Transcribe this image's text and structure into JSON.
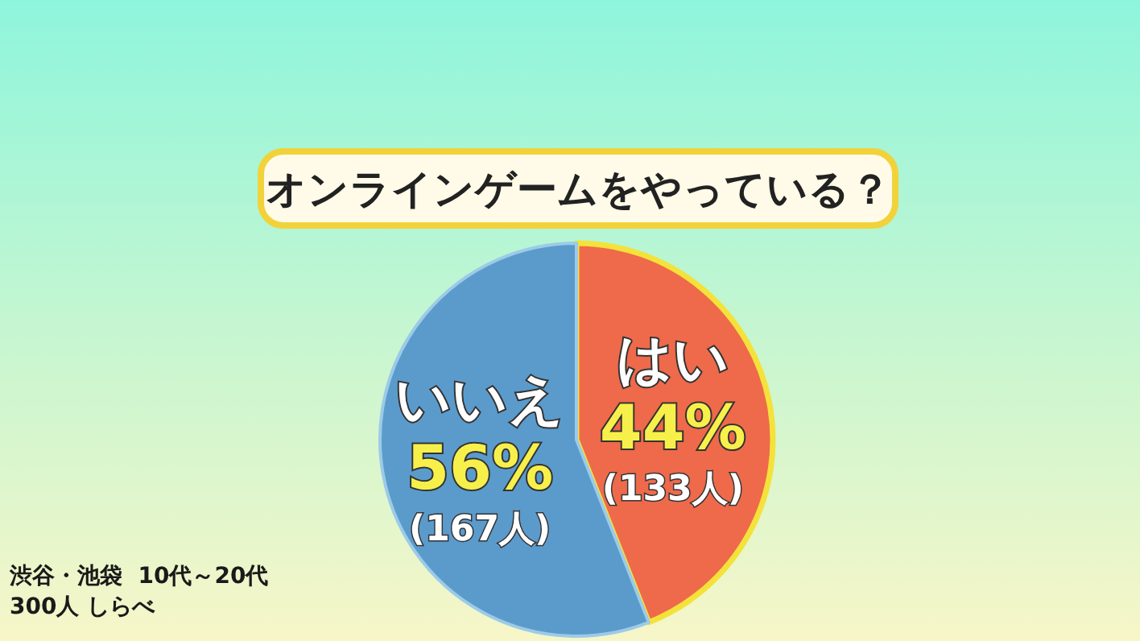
{
  "chart_data": {
    "type": "pie",
    "title": "オンラインゲームをやっている？",
    "categories": [
      "はい",
      "いいえ"
    ],
    "values": [
      44,
      56
    ],
    "colors": [
      "#ee6a4a",
      "#5b9bcc"
    ],
    "value_labels": [
      "44%\n(133人)",
      "56%\n(167人)"
    ],
    "annotations": [
      "渋谷・池袋  10代～20代\n300人 しらべ"
    ]
  }
}
